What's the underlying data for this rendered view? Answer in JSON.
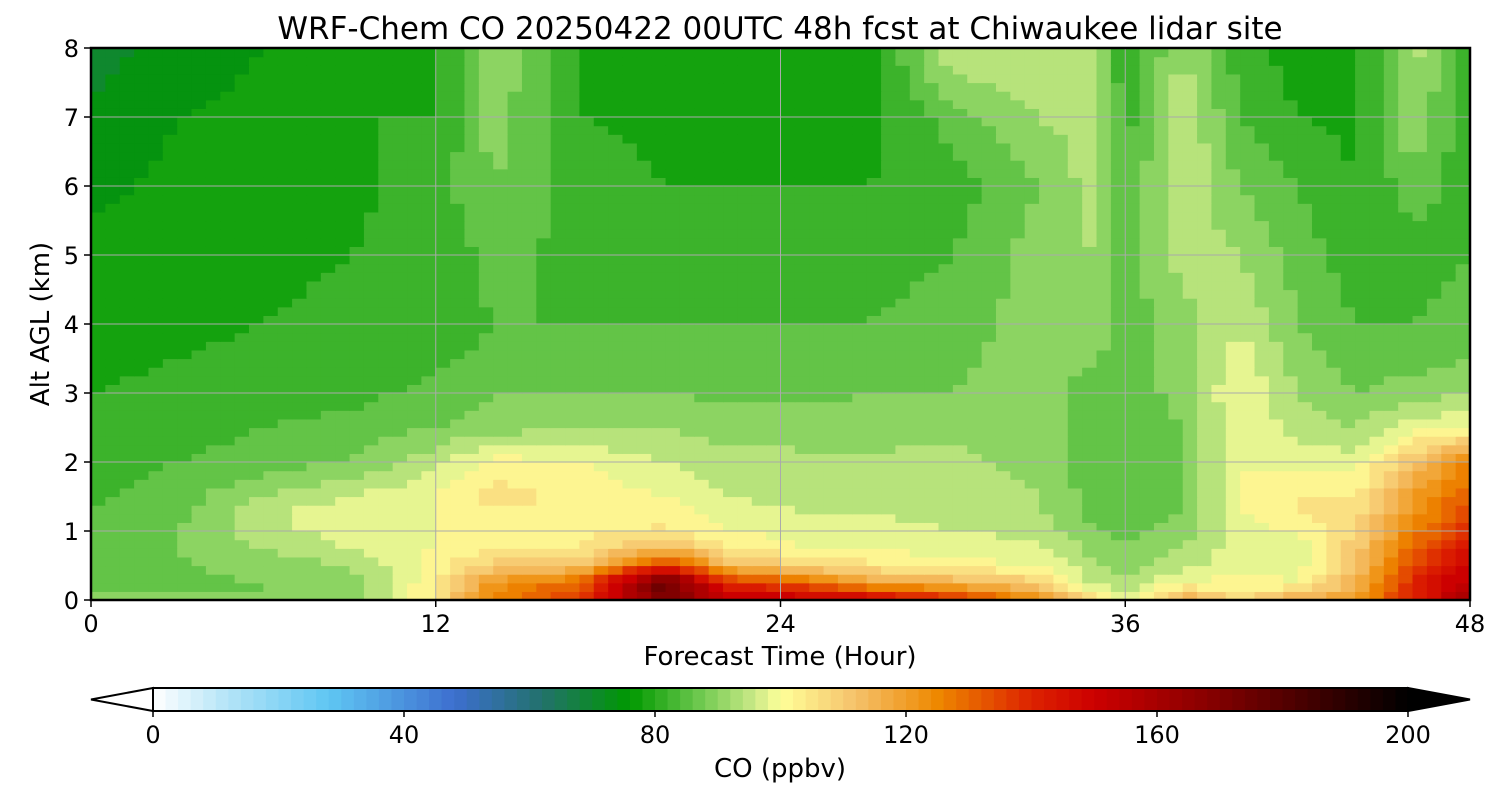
{
  "chart_data": {
    "type": "heatmap",
    "title": "WRF-Chem CO  20250422 00UTC 48h fcst at Chiwaukee lidar site",
    "xlabel": "Forecast Time (Hour)",
    "ylabel": "Alt AGL (km)",
    "xlim": [
      0,
      48
    ],
    "ylim": [
      0,
      8
    ],
    "xticks": [
      "0",
      "12",
      "24",
      "36",
      "48"
    ],
    "yticks": [
      "0",
      "1",
      "2",
      "3",
      "4",
      "5",
      "6",
      "7",
      "8"
    ],
    "grid": true,
    "x": [
      0,
      3,
      6,
      9,
      12,
      14,
      17,
      20,
      22,
      25,
      27,
      30,
      33,
      35,
      36,
      38,
      40,
      42,
      44,
      46,
      48
    ],
    "y": [
      0,
      0.1,
      0.25,
      0.5,
      0.75,
      1,
      1.25,
      1.5,
      2,
      2.5,
      3,
      3.5,
      4,
      5,
      6,
      7,
      8
    ],
    "z": [
      [
        90,
        90,
        90,
        90,
        105,
        125,
        140,
        175,
        155,
        150,
        150,
        140,
        125,
        105,
        95,
        120,
        110,
        120,
        120,
        140,
        160
      ],
      [
        88,
        88,
        88,
        90,
        104,
        125,
        135,
        170,
        150,
        145,
        140,
        130,
        118,
        100,
        95,
        110,
        105,
        110,
        118,
        140,
        160
      ],
      [
        86,
        87,
        88,
        90,
        103,
        122,
        130,
        180,
        140,
        130,
        120,
        115,
        110,
        95,
        92,
        100,
        102,
        100,
        115,
        140,
        155
      ],
      [
        86,
        87,
        90,
        92,
        102,
        110,
        112,
        140,
        115,
        108,
        105,
        102,
        100,
        92,
        90,
        95,
        98,
        98,
        112,
        135,
        150
      ],
      [
        85,
        88,
        92,
        96,
        100,
        104,
        104,
        115,
        105,
        100,
        100,
        98,
        97,
        90,
        88,
        92,
        98,
        98,
        110,
        130,
        145
      ],
      [
        84,
        88,
        94,
        98,
        100,
        102,
        103,
        105,
        100,
        98,
        97,
        96,
        95,
        88,
        86,
        90,
        98,
        100,
        108,
        125,
        140
      ],
      [
        84,
        87,
        95,
        100,
        100,
        103,
        102,
        102,
        98,
        96,
        96,
        95,
        93,
        86,
        85,
        88,
        100,
        104,
        106,
        122,
        135
      ],
      [
        83,
        86,
        92,
        96,
        100,
        106,
        103,
        100,
        96,
        95,
        95,
        94,
        92,
        86,
        84,
        88,
        100,
        104,
        104,
        120,
        132
      ],
      [
        82,
        84,
        86,
        88,
        95,
        102,
        100,
        96,
        94,
        93,
        93,
        93,
        91,
        85,
        84,
        88,
        100,
        98,
        98,
        112,
        125
      ],
      [
        81,
        82,
        84,
        85,
        88,
        90,
        92,
        92,
        90,
        90,
        90,
        91,
        90,
        85,
        84,
        88,
        100,
        94,
        92,
        98,
        100
      ],
      [
        80,
        81,
        82,
        83,
        85,
        88,
        88,
        88,
        87,
        87,
        88,
        88,
        90,
        86,
        85,
        90,
        100,
        92,
        88,
        90,
        92
      ],
      [
        79,
        80,
        81,
        82,
        83,
        85,
        86,
        86,
        85,
        85,
        86,
        87,
        90,
        88,
        86,
        90,
        98,
        90,
        86,
        86,
        88
      ],
      [
        78,
        79,
        80,
        81,
        82,
        84,
        84,
        84,
        84,
        84,
        84,
        86,
        90,
        90,
        86,
        90,
        96,
        88,
        84,
        84,
        86
      ],
      [
        77,
        78,
        79,
        80,
        82,
        85,
        83,
        82,
        82,
        82,
        82,
        84,
        90,
        92,
        86,
        94,
        92,
        86,
        82,
        82,
        84
      ],
      [
        75,
        77,
        78,
        79,
        82,
        88,
        82,
        80,
        80,
        80,
        80,
        82,
        88,
        94,
        84,
        96,
        88,
        84,
        80,
        86,
        82
      ],
      [
        73,
        76,
        77,
        80,
        80,
        90,
        80,
        79,
        78,
        78,
        78,
        86,
        92,
        94,
        82,
        96,
        84,
        80,
        79,
        92,
        80
      ],
      [
        70,
        74,
        76,
        78,
        79,
        92,
        79,
        78,
        77,
        76,
        77,
        96,
        96,
        92,
        80,
        92,
        82,
        78,
        78,
        94,
        80
      ]
    ],
    "colorbar": {
      "label": "CO  (ppbv)",
      "ticks": [
        "0",
        "40",
        "80",
        "120",
        "160",
        "200"
      ],
      "range": [
        0,
        200
      ],
      "extend": "both",
      "stops": [
        {
          "value": 0,
          "color": "#ffffff"
        },
        {
          "value": 12,
          "color": "#b3e4f7"
        },
        {
          "value": 28,
          "color": "#5fc6f3"
        },
        {
          "value": 48,
          "color": "#3d6fcf"
        },
        {
          "value": 62,
          "color": "#22716c"
        },
        {
          "value": 76,
          "color": "#009900"
        },
        {
          "value": 88,
          "color": "#77cc55"
        },
        {
          "value": 96,
          "color": "#ccea88"
        },
        {
          "value": 100,
          "color": "#ffff99"
        },
        {
          "value": 112,
          "color": "#f5c16a"
        },
        {
          "value": 125,
          "color": "#ee8800"
        },
        {
          "value": 140,
          "color": "#dd2200"
        },
        {
          "value": 150,
          "color": "#cc0000"
        },
        {
          "value": 168,
          "color": "#880000"
        },
        {
          "value": 188,
          "color": "#330000"
        },
        {
          "value": 200,
          "color": "#000000"
        }
      ]
    }
  }
}
